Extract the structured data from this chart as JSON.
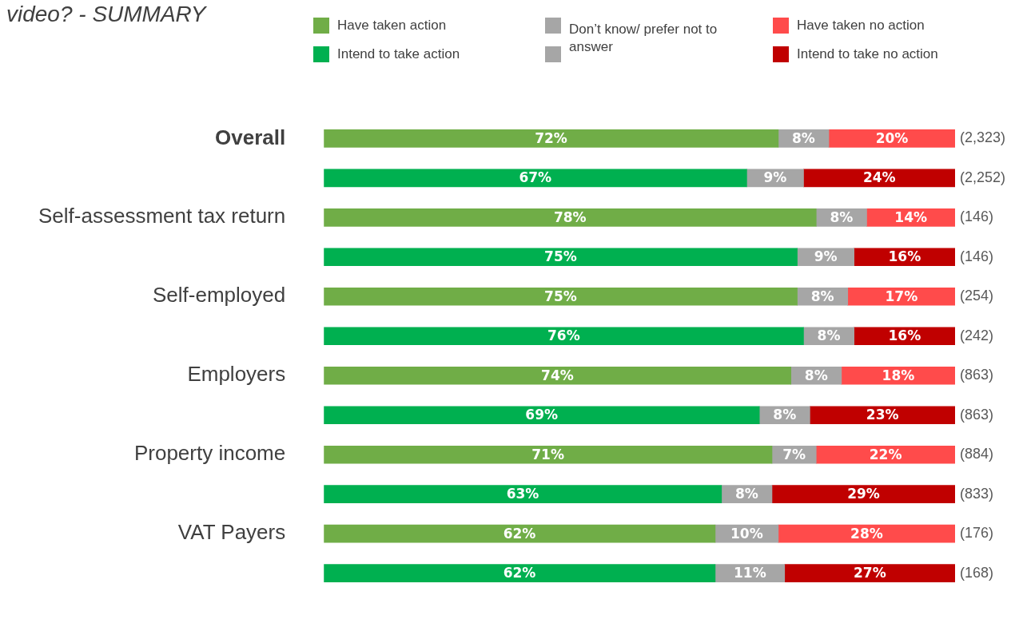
{
  "chart_data": {
    "type": "bar",
    "orientation": "horizontal",
    "stacked": true,
    "title": "video? - SUMMARY",
    "categories": [
      "Overall",
      null,
      "Self-assessment tax return",
      null,
      "Self-employed",
      null,
      "Employers",
      null,
      "Property income",
      null,
      "VAT Payers",
      null
    ],
    "series": [
      {
        "name": "Have taken action",
        "color": "#70ad47",
        "values": [
          72,
          null,
          78,
          null,
          75,
          null,
          74,
          null,
          71,
          null,
          62,
          null
        ],
        "value_labels": [
          "72%",
          null,
          "78%",
          null,
          "75%",
          null,
          "74%",
          null,
          "71%",
          null,
          "62%",
          null
        ]
      },
      {
        "name": "Intend to take action",
        "color": "#00b050",
        "values": [
          null,
          67,
          null,
          75,
          null,
          76,
          null,
          69,
          null,
          63,
          null,
          62
        ],
        "value_labels": [
          null,
          "67%",
          null,
          "75%",
          null,
          "76%",
          null,
          "69%",
          null,
          "63%",
          null,
          "62%"
        ]
      },
      {
        "name": "Don’t know/ prefer not to answer",
        "color": "#a6a6a6",
        "values": [
          8,
          9,
          8,
          9,
          8,
          8,
          8,
          8,
          7,
          8,
          10,
          11
        ],
        "value_labels": [
          "8%",
          "9%",
          "8%",
          "9%",
          "8%",
          "8%",
          "8%",
          "8%",
          "7%",
          "8%",
          "10%",
          "11%"
        ]
      },
      {
        "name": "Have taken no action",
        "color": "#ff4b4b",
        "values": [
          20,
          null,
          14,
          null,
          17,
          null,
          18,
          null,
          22,
          null,
          28,
          null
        ],
        "value_labels": [
          "20%",
          null,
          "14%",
          null,
          "17%",
          null,
          "18%",
          null,
          "22%",
          null,
          "28%",
          null
        ]
      },
      {
        "name": "Intend to take no action",
        "color": "#c00000",
        "values": [
          null,
          24,
          null,
          16,
          null,
          16,
          null,
          23,
          null,
          29,
          null,
          27
        ],
        "value_labels": [
          null,
          "24%",
          null,
          "16%",
          null,
          "16%",
          null,
          "23%",
          null,
          "29%",
          null,
          "27%"
        ]
      }
    ],
    "tick_labels": "y",
    "legend": "top right",
    "annotations": [
      "(2,323)",
      "(2,252)",
      "(146)",
      "(146)",
      "(254)",
      "(242)",
      "(863)",
      "(863)",
      "(884)",
      "(833)",
      "(176)",
      "(168)"
    ]
  }
}
